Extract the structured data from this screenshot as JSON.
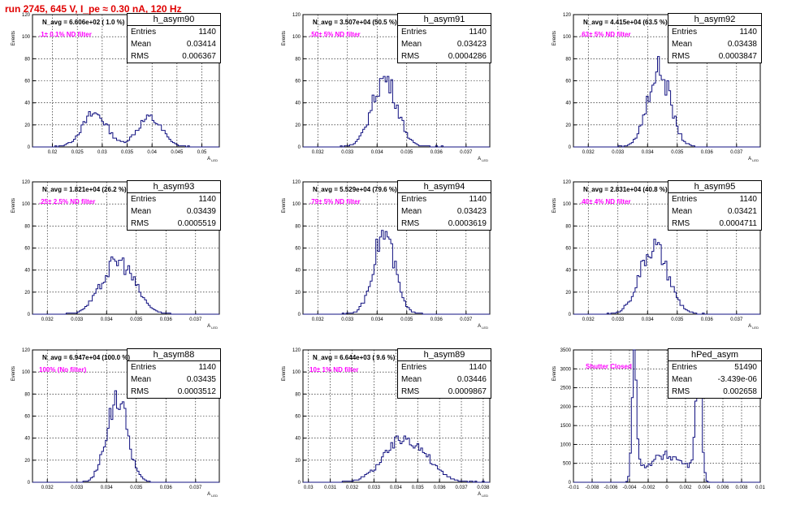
{
  "run_title": "run 2745,   645 V, I_pe ≈ 0.30 nA, 120 Hz",
  "colors": {
    "title": "#e00000",
    "histogram": "#101080",
    "nd_label": "#ff00ff"
  },
  "chart_data": [
    {
      "type": "histogram",
      "name": "h_asym90",
      "ylabel": "Events",
      "xlabel": "A_{LED}",
      "xlim": [
        0.016,
        0.0535
      ],
      "ylim": [
        0,
        120
      ],
      "xticks": [
        "0.02",
        "0.025",
        "0.03",
        "0.035",
        "0.04",
        "0.045",
        "0.05"
      ],
      "yticks": [
        "0",
        "20",
        "40",
        "60",
        "80",
        "100",
        "120"
      ],
      "grid": true,
      "stats": {
        "name": "h_asym90",
        "entries": "1140",
        "mean": "0.03414",
        "rms": "0.006367"
      },
      "n_avg": "N_avg = 6.606e+02 ( 1.0 %)",
      "filter": ".1± 0.1% ND filter",
      "hist": [
        [
          0.0225,
          0.0464
        ],
        [
          0.0455,
          0.0483
        ],
        [
          0.04832,
          0.0495
        ],
        [
          0.0515,
          0.0514
        ]
      ],
      "shape": {
        "peaks": [
          [
            0.0285,
            0.0025,
            30
          ],
          [
            0.0395,
            0.0025,
            26
          ]
        ]
      }
    },
    {
      "type": "histogram",
      "name": "h_asym91",
      "ylabel": "Events",
      "xlabel": "A_{LED}",
      "xlim": [
        0.0315,
        0.0378
      ],
      "ylim": [
        0,
        120
      ],
      "xticks": [
        "0.032",
        "0.033",
        "0.034",
        "0.035",
        "0.036",
        "0.037"
      ],
      "yticks": [
        "0",
        "20",
        "40",
        "60",
        "80",
        "100",
        "120"
      ],
      "grid": true,
      "stats": {
        "name": "h_asym91",
        "entries": "1140",
        "mean": "0.03423",
        "rms": "0.0004286"
      },
      "n_avg": "N_avg = 3.507e+04 (50.5 %)",
      "filter": ".50± 5% ND filter",
      "shape": {
        "peaks": [
          [
            0.03425,
            0.00042,
            62
          ]
        ]
      }
    },
    {
      "type": "histogram",
      "name": "h_asym92",
      "ylabel": "Events",
      "xlabel": "A_{LED}",
      "xlim": [
        0.0315,
        0.0378
      ],
      "ylim": [
        0,
        120
      ],
      "xticks": [
        "0.032",
        "0.033",
        "0.034",
        "0.035",
        "0.036",
        "0.037"
      ],
      "yticks": [
        "0",
        "20",
        "40",
        "60",
        "80",
        "100",
        "120"
      ],
      "grid": true,
      "stats": {
        "name": "h_asym92",
        "entries": "1140",
        "mean": "0.03438",
        "rms": "0.0003847"
      },
      "n_avg": "N_avg = 4.415e+04 (63.5 %)",
      "filter": ".63± 5% ND filter",
      "shape": {
        "peaks": [
          [
            0.03438,
            0.00038,
            70
          ]
        ]
      }
    },
    {
      "type": "histogram",
      "name": "h_asym93",
      "ylabel": "Events",
      "xlabel": "A_{LED}",
      "xlim": [
        0.0315,
        0.0378
      ],
      "ylim": [
        0,
        120
      ],
      "xticks": [
        "0.032",
        "0.033",
        "0.034",
        "0.035",
        "0.036",
        "0.037"
      ],
      "yticks": [
        "0",
        "20",
        "40",
        "60",
        "80",
        "100",
        "120"
      ],
      "grid": true,
      "stats": {
        "name": "h_asym93",
        "entries": "1140",
        "mean": "0.03439",
        "rms": "0.0005519"
      },
      "n_avg": "N_avg = 1.821e+04 (26.2 %)",
      "filter": ".25± 2.5% ND filter",
      "shape": {
        "peaks": [
          [
            0.0344,
            0.00055,
            48
          ]
        ]
      }
    },
    {
      "type": "histogram",
      "name": "h_asym94",
      "ylabel": "Events",
      "xlabel": "A_{LED}",
      "xlim": [
        0.0315,
        0.0378
      ],
      "ylim": [
        0,
        120
      ],
      "xticks": [
        "0.032",
        "0.033",
        "0.034",
        "0.035",
        "0.036",
        "0.037"
      ],
      "yticks": [
        "0",
        "20",
        "40",
        "60",
        "80",
        "100",
        "120"
      ],
      "grid": true,
      "stats": {
        "name": "h_asym94",
        "entries": "1140",
        "mean": "0.03423",
        "rms": "0.0003619"
      },
      "n_avg": "N_avg = 5.529e+04 (79.6 %)",
      "filter": ".79± 5% ND filter",
      "shape": {
        "peaks": [
          [
            0.03423,
            0.00036,
            73
          ]
        ]
      }
    },
    {
      "type": "histogram",
      "name": "h_asym95",
      "ylabel": "Events",
      "xlabel": "A_{LED}",
      "xlim": [
        0.0315,
        0.0378
      ],
      "ylim": [
        0,
        120
      ],
      "xticks": [
        "0.032",
        "0.033",
        "0.034",
        "0.035",
        "0.036",
        "0.037"
      ],
      "yticks": [
        "0",
        "20",
        "40",
        "60",
        "80",
        "100",
        "120"
      ],
      "grid": true,
      "stats": {
        "name": "h_asym95",
        "entries": "1140",
        "mean": "0.03421",
        "rms": "0.0004711"
      },
      "n_avg": "N_avg = 2.831e+04 (40.8 %)",
      "filter": ".40± 4% ND filter",
      "shape": {
        "peaks": [
          [
            0.03421,
            0.00047,
            60
          ]
        ]
      }
    },
    {
      "type": "histogram",
      "name": "h_asym88",
      "ylabel": "Events",
      "xlabel": "A_{LED}",
      "xlim": [
        0.0315,
        0.0378
      ],
      "ylim": [
        0,
        120
      ],
      "xticks": [
        "0.032",
        "0.033",
        "0.034",
        "0.035",
        "0.036",
        "0.037"
      ],
      "yticks": [
        "0",
        "20",
        "40",
        "60",
        "80",
        "100",
        "120"
      ],
      "grid": true,
      "stats": {
        "name": "h_asym88",
        "entries": "1140",
        "mean": "0.03435",
        "rms": "0.0003512"
      },
      "n_avg": "N_avg = 6.947e+04 (100.0 %)",
      "filter": "100% (No filter)",
      "shape": {
        "peaks": [
          [
            0.03435,
            0.00035,
            76
          ]
        ]
      }
    },
    {
      "type": "histogram",
      "name": "h_asym89",
      "ylabel": "Events",
      "xlabel": "A_{LED}",
      "xlim": [
        0.02975,
        0.0383
      ],
      "ylim": [
        0,
        120
      ],
      "xticks": [
        "0.03",
        "0.031",
        "0.032",
        "0.033",
        "0.034",
        "0.035",
        "0.036",
        "0.037",
        "0.038"
      ],
      "yticks": [
        "0",
        "20",
        "40",
        "60",
        "80",
        "100",
        "120"
      ],
      "grid": true,
      "stats": {
        "name": "h_asym89",
        "entries": "1140",
        "mean": "0.03446",
        "rms": "0.0009867"
      },
      "n_avg": "N_avg = 6.644e+03 ( 9.6 %)",
      "filter": "10± 1% ND filter",
      "shape": {
        "peaks": [
          [
            0.03446,
            0.00095,
            40
          ]
        ]
      }
    },
    {
      "type": "histogram",
      "name": "hPed_asym",
      "ylabel": "Events",
      "xlabel": "",
      "xlim": [
        -0.01,
        0.01
      ],
      "ylim": [
        0,
        3500
      ],
      "xticks": [
        "-0.01",
        "-0.008",
        "-0.006",
        "-0.004",
        "-0.002",
        "0",
        "0.002",
        "0.004",
        "0.006",
        "0.008",
        "0.01"
      ],
      "yticks": [
        "0",
        "500",
        "1000",
        "1500",
        "2000",
        "2500",
        "3000",
        "3500"
      ],
      "grid": true,
      "stats": {
        "name": "hPed_asym",
        "entries": "51490",
        "mean": "-3.439e-06",
        "rms": "0.002658"
      },
      "n_avg": "",
      "filter": "Shutter Closed",
      "shape": {
        "peaks": [
          [
            -0.0035,
            0.00025,
            3300
          ],
          [
            0.0034,
            0.0003,
            3350
          ]
        ],
        "floor": 700
      }
    }
  ]
}
